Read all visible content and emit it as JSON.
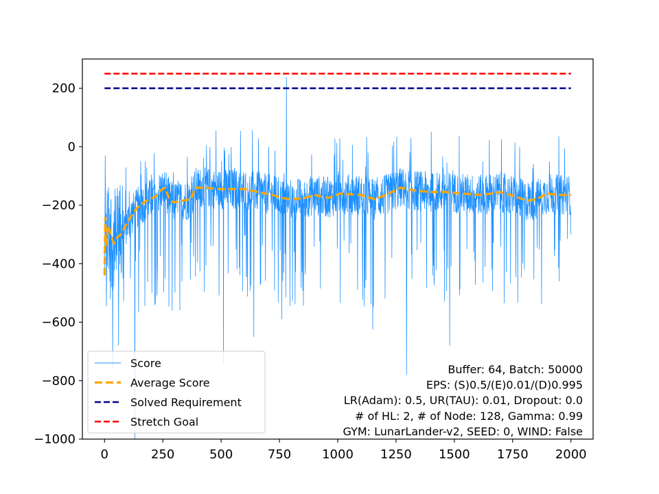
{
  "chart_data": {
    "type": "line",
    "title": "",
    "xlabel": "",
    "ylabel": "",
    "xlim": [
      -95,
      2095
    ],
    "ylim": [
      -1000,
      300
    ],
    "xticks": [
      0,
      250,
      500,
      750,
      1000,
      1250,
      1500,
      1750,
      2000
    ],
    "yticks": [
      -1000,
      -800,
      -600,
      -400,
      -200,
      0,
      200
    ],
    "xtick_labels": [
      "0",
      "250",
      "500",
      "750",
      "1000",
      "1250",
      "1500",
      "1750",
      "2000"
    ],
    "ytick_labels": [
      "−1000",
      "−800",
      "−600",
      "−400",
      "−200",
      "0",
      "200"
    ],
    "grid": false,
    "legend_position": "lower-left",
    "series": [
      {
        "name": "Score",
        "style": "solid",
        "color": "#1e90ff",
        "kind": "noisy",
        "episodes": 2000,
        "anchor_points": [
          [
            0,
            -440
          ],
          [
            3,
            -30
          ],
          [
            8,
            -545
          ],
          [
            15,
            -160
          ],
          [
            25,
            -520
          ],
          [
            35,
            -760
          ],
          [
            50,
            -420
          ],
          [
            60,
            -680
          ],
          [
            75,
            -300
          ],
          [
            90,
            -150
          ],
          [
            130,
            -1000
          ],
          [
            180,
            -140
          ],
          [
            250,
            -160
          ],
          [
            260,
            -450
          ],
          [
            290,
            -560
          ],
          [
            300,
            -180
          ],
          [
            400,
            -145
          ],
          [
            510,
            -740
          ],
          [
            640,
            -650
          ],
          [
            760,
            -590
          ],
          [
            780,
            238
          ],
          [
            900,
            -160
          ],
          [
            1150,
            -625
          ],
          [
            1295,
            -780
          ],
          [
            1480,
            -680
          ],
          [
            1800,
            -420
          ],
          [
            2000,
            -300
          ]
        ]
      },
      {
        "name": "Average Score",
        "style": "dashed",
        "color": "#ffa500",
        "kind": "smooth",
        "points": [
          [
            0,
            -440
          ],
          [
            3,
            -240
          ],
          [
            6,
            -340
          ],
          [
            10,
            -310
          ],
          [
            15,
            -270
          ],
          [
            20,
            -280
          ],
          [
            30,
            -310
          ],
          [
            40,
            -330
          ],
          [
            55,
            -310
          ],
          [
            70,
            -300
          ],
          [
            90,
            -270
          ],
          [
            120,
            -230
          ],
          [
            150,
            -200
          ],
          [
            180,
            -185
          ],
          [
            220,
            -170
          ],
          [
            240,
            -150
          ],
          [
            260,
            -140
          ],
          [
            280,
            -185
          ],
          [
            300,
            -190
          ],
          [
            330,
            -185
          ],
          [
            370,
            -180
          ],
          [
            390,
            -140
          ],
          [
            430,
            -140
          ],
          [
            500,
            -145
          ],
          [
            600,
            -145
          ],
          [
            660,
            -155
          ],
          [
            720,
            -165
          ],
          [
            760,
            -175
          ],
          [
            800,
            -180
          ],
          [
            860,
            -175
          ],
          [
            900,
            -165
          ],
          [
            960,
            -175
          ],
          [
            1010,
            -160
          ],
          [
            1100,
            -165
          ],
          [
            1160,
            -180
          ],
          [
            1220,
            -160
          ],
          [
            1270,
            -140
          ],
          [
            1330,
            -150
          ],
          [
            1400,
            -155
          ],
          [
            1470,
            -155
          ],
          [
            1530,
            -160
          ],
          [
            1620,
            -165
          ],
          [
            1700,
            -155
          ],
          [
            1760,
            -170
          ],
          [
            1810,
            -185
          ],
          [
            1850,
            -180
          ],
          [
            1900,
            -160
          ],
          [
            1950,
            -165
          ],
          [
            2000,
            -165
          ]
        ]
      },
      {
        "name": "Solved Requirement",
        "style": "dashed",
        "color": "#00008b",
        "kind": "constant",
        "x_range": [
          0,
          2000
        ],
        "value": 200
      },
      {
        "name": "Stretch Goal",
        "style": "dashed",
        "color": "#ff0000",
        "kind": "constant",
        "x_range": [
          0,
          2000
        ],
        "value": 250
      }
    ],
    "annotation_lines": [
      "Buffer: 64, Batch: 50000",
      "EPS: (S)0.5/(E)0.01/(D)0.995",
      "LR(Adam): 0.5, UR(TAU): 0.01, Dropout: 0.0",
      "# of HL: 2, # of Node: 128, Gamma: 0.99",
      "GYM: LunarLander-v2, SEED: 0, WIND: False"
    ]
  }
}
